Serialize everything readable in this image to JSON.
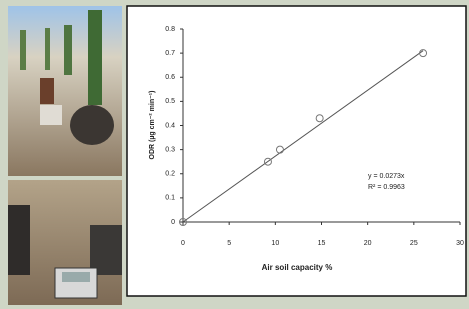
{
  "chart_data": {
    "type": "scatter",
    "xlabel": "Air soil capacity %",
    "ylabel": "ODR (µg cm⁻² min⁻¹)",
    "x": [
      0,
      9.2,
      10.5,
      14.8,
      26
    ],
    "values": [
      0,
      0.25,
      0.3,
      0.43,
      0.7
    ],
    "xlim": [
      0,
      30
    ],
    "xticks": [
      0,
      5,
      10,
      15,
      20,
      25,
      30
    ],
    "ylim": [
      0,
      0.8
    ],
    "yticks": [
      0,
      0.1,
      0.2,
      0.3,
      0.4,
      0.5,
      0.6,
      0.7,
      0.8
    ],
    "trendline": {
      "x": [
        0,
        26
      ],
      "y": [
        0,
        0.71
      ]
    },
    "annotations": [
      "y = 0.0273x",
      "R² = 0.9963"
    ],
    "color": "#777777"
  }
}
